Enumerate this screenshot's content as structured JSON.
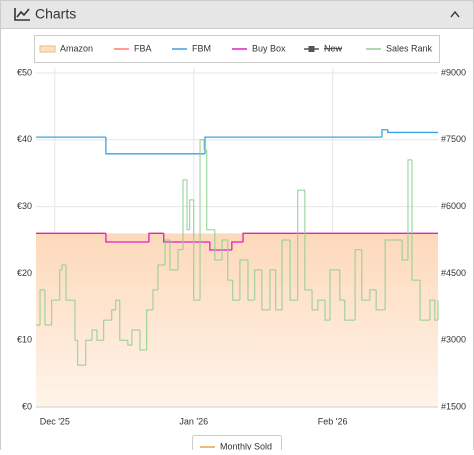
{
  "header": {
    "title": "Charts"
  },
  "footer_button": "Monthly Sold",
  "chart_data": {
    "type": "line",
    "step": true,
    "grid": true,
    "xlim": [
      -4.2,
      85.5
    ],
    "xticks": [
      {
        "value": 0,
        "label": "Dec '25"
      },
      {
        "value": 31,
        "label": "Jan '26"
      },
      {
        "value": 62,
        "label": "Feb '26"
      }
    ],
    "ylim": [
      0,
      50
    ],
    "yticks": [
      {
        "value": 0,
        "label": "€0"
      },
      {
        "value": 10,
        "label": "€10"
      },
      {
        "value": 20,
        "label": "€20"
      },
      {
        "value": 30,
        "label": "€30"
      },
      {
        "value": 40,
        "label": "€40"
      },
      {
        "value": 50,
        "label": "€50"
      }
    ],
    "y2lim": [
      1500,
      9000
    ],
    "y2ticks": [
      {
        "value": 1500,
        "label": "#1500"
      },
      {
        "value": 3000,
        "label": "#3000"
      },
      {
        "value": 4500,
        "label": "#4500"
      },
      {
        "value": 6000,
        "label": "#6000"
      },
      {
        "value": 7500,
        "label": "#7500"
      },
      {
        "value": 9000,
        "label": "#9000"
      }
    ],
    "series": [
      {
        "name": "Amazon",
        "color": "#f3b877",
        "fill": true,
        "x": [
          -4.2,
          85.5
        ],
        "values": [
          26,
          26
        ]
      },
      {
        "name": "FBA",
        "color": "#ff7f66",
        "x": [],
        "values": []
      },
      {
        "name": "FBM",
        "color": "#3aa3e3",
        "x": [
          -4.2,
          11.4,
          33.5,
          73,
          74.3,
          85.5
        ],
        "values": [
          40.4,
          37.9,
          40.4,
          41.5,
          41.1,
          41.1
        ]
      },
      {
        "name": "Buy Box",
        "color": "#e020c0",
        "x": [
          -4.2,
          11.4,
          21.0,
          24.3,
          34.6,
          39.5,
          42.0,
          85.5
        ],
        "values": [
          26.0,
          24.7,
          26.0,
          24.7,
          23.5,
          24.7,
          26.0,
          26.0
        ]
      },
      {
        "name": "New",
        "color": "#555555",
        "hidden": true,
        "x": [],
        "values": []
      },
      {
        "name": "Sales Rank",
        "color": "#8fcf8f",
        "axis": "y2",
        "x": [
          -4.2,
          -3.3,
          -2.2,
          -0.7,
          1.1,
          1.6,
          2.5,
          4.5,
          5.1,
          6.9,
          8.3,
          9.4,
          10.9,
          12.7,
          13.6,
          14.5,
          16.3,
          17.2,
          19.0,
          20.5,
          21.9,
          23.0,
          24.6,
          25.7,
          27.5,
          28.6,
          29.5,
          30.1,
          31.0,
          32.4,
          33.3,
          33.9,
          35.7,
          37.3,
          38.6,
          39.7,
          41.3,
          43.1,
          44.6,
          46.2,
          48.0,
          49.3,
          50.7,
          52.5,
          54.2,
          55.8,
          57.4,
          58.7,
          60.3,
          61.4,
          63.6,
          64.7,
          67.0,
          68.5,
          70.3,
          71.7,
          73.7,
          75.9,
          77.5,
          78.8,
          79.7,
          81.5,
          83.7,
          84.8,
          85.5
        ],
        "values": [
          3340,
          4130,
          3340,
          3900,
          4580,
          4690,
          3900,
          3000,
          2440,
          3000,
          3230,
          3000,
          3450,
          3680,
          3900,
          3000,
          2890,
          3230,
          2780,
          3680,
          4130,
          4690,
          5250,
          4580,
          5030,
          6600,
          5480,
          6150,
          3900,
          7500,
          7270,
          5480,
          4800,
          5250,
          4350,
          3900,
          4800,
          3900,
          4580,
          3680,
          4580,
          3680,
          5250,
          3900,
          6370,
          4130,
          3680,
          3900,
          3450,
          4580,
          3900,
          3450,
          5030,
          3900,
          4130,
          3680,
          5250,
          5250,
          4800,
          7050,
          4350,
          3450,
          3900,
          3450,
          3900
        ]
      }
    ]
  }
}
